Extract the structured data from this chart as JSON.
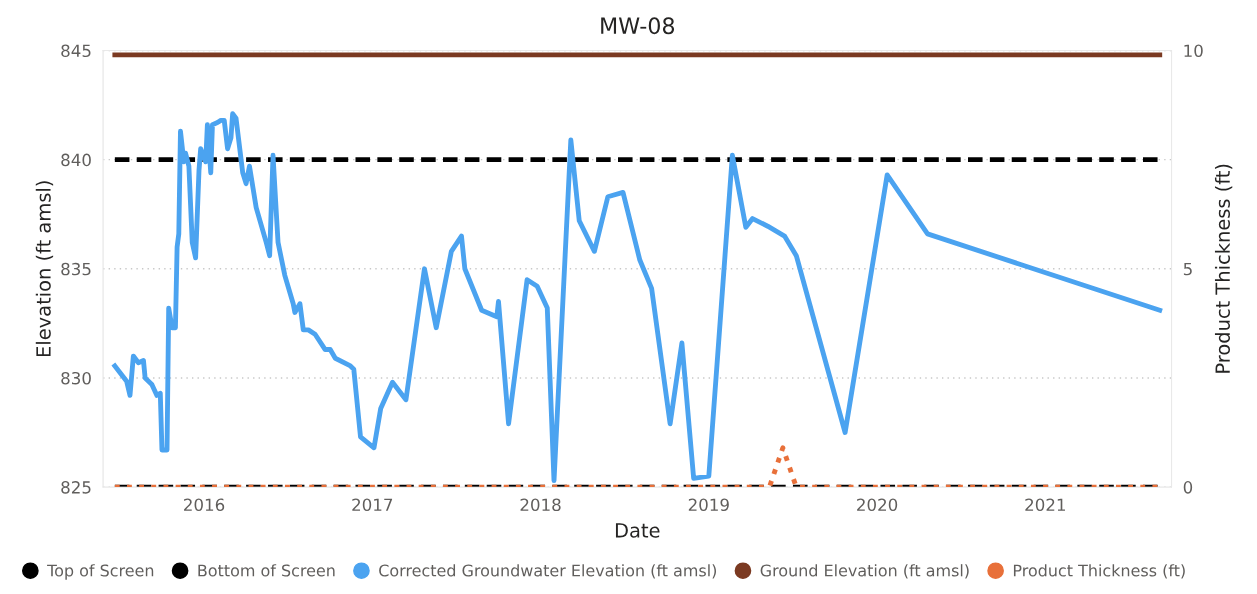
{
  "chart_data": {
    "type": "line",
    "title": "MW-08",
    "xlabel": "Date",
    "ylabel": "Elevation (ft amsl)",
    "y2label": "Product Thickness (ft)",
    "xlim": [
      2015.4,
      2021.75
    ],
    "xticks": [
      2016,
      2017,
      2018,
      2019,
      2020,
      2021
    ],
    "ylim": [
      825,
      845
    ],
    "yticks": [
      825,
      830,
      835,
      840,
      845
    ],
    "y2lim": [
      0,
      10
    ],
    "y2ticks": [
      0,
      5,
      10
    ],
    "grid": "y",
    "legend": "bottom",
    "series": [
      {
        "name": "Top of Screen",
        "color": "#000000",
        "line_style": "dashed",
        "x": [
          2015.47,
          2021.68
        ],
        "values": [
          840,
          840
        ]
      },
      {
        "name": "Bottom of Screen",
        "color": "#000000",
        "line_style": "dashed",
        "x": [
          2015.47,
          2021.68
        ],
        "values": [
          825,
          825
        ]
      },
      {
        "name": "Corrected Groundwater Elevation (ft amsl)",
        "color": "#4ba3f0",
        "line_style": "solid",
        "x": [
          2015.47,
          2015.54,
          2015.56,
          2015.58,
          2015.61,
          2015.64,
          2015.65,
          2015.69,
          2015.72,
          2015.74,
          2015.75,
          2015.78,
          2015.79,
          2015.81,
          2015.83,
          2015.84,
          2015.85,
          2015.86,
          2015.88,
          2015.89,
          2015.91,
          2015.93,
          2015.95,
          2015.97,
          2015.98,
          2016.01,
          2016.02,
          2016.04,
          2016.05,
          2016.08,
          2016.1,
          2016.12,
          2016.14,
          2016.16,
          2016.17,
          2016.19,
          2016.23,
          2016.25,
          2016.27,
          2016.31,
          2016.37,
          2016.39,
          2016.41,
          2016.43,
          2016.44,
          2016.48,
          2016.53,
          2016.54,
          2016.57,
          2016.59,
          2016.62,
          2016.66,
          2016.72,
          2016.75,
          2016.78,
          2016.87,
          2016.89,
          2016.93,
          2017.01,
          2017.05,
          2017.12,
          2017.2,
          2017.31,
          2017.38,
          2017.47,
          2017.53,
          2017.55,
          2017.65,
          2017.74,
          2017.75,
          2017.81,
          2017.92,
          2017.98,
          2018.04,
          2018.08,
          2018.18,
          2018.23,
          2018.32,
          2018.4,
          2018.49,
          2018.59,
          2018.66,
          2018.77,
          2018.84,
          2018.91,
          2019.0,
          2019.14,
          2019.22,
          2019.26,
          2019.35,
          2019.45,
          2019.52,
          2019.81,
          2020.06,
          2020.3,
          2021.68
        ],
        "values": [
          830.55,
          829.85,
          829.2,
          831.0,
          830.7,
          830.8,
          830.0,
          829.7,
          829.2,
          829.3,
          826.7,
          826.7,
          833.2,
          832.3,
          832.3,
          836.0,
          836.6,
          841.3,
          839.9,
          840.3,
          839.7,
          836.2,
          835.5,
          839.5,
          840.5,
          839.9,
          841.6,
          839.4,
          841.6,
          841.7,
          841.8,
          841.8,
          840.5,
          841.0,
          842.1,
          841.9,
          839.4,
          838.9,
          839.7,
          837.8,
          836.2,
          835.6,
          840.2,
          837.5,
          836.2,
          834.7,
          833.4,
          833.0,
          833.4,
          832.2,
          832.2,
          832.0,
          831.3,
          831.3,
          830.9,
          830.55,
          830.4,
          827.3,
          826.8,
          828.6,
          829.8,
          829.0,
          835.0,
          832.3,
          835.8,
          836.5,
          835.0,
          833.1,
          832.8,
          833.5,
          827.9,
          834.5,
          834.2,
          833.2,
          825.3,
          840.9,
          837.2,
          835.8,
          838.3,
          838.5,
          835.4,
          834.1,
          827.9,
          831.6,
          825.4,
          825.5,
          840.2,
          836.9,
          837.3,
          836.95,
          836.5,
          835.6,
          827.5,
          839.3,
          836.6,
          833.1
        ]
      },
      {
        "name": "Ground Elevation (ft amsl)",
        "color": "#7b3a22",
        "line_style": "solid",
        "x": [
          2015.47,
          2021.68
        ],
        "values": [
          844.8,
          844.8
        ]
      },
      {
        "name": "Product Thickness (ft)",
        "color": "#e8703a",
        "line_style": "dotted",
        "axis": "y2",
        "x": [
          2015.47,
          2019.36,
          2019.44,
          2019.52,
          2021.68
        ],
        "values": [
          0,
          0,
          0.9,
          0,
          0
        ]
      }
    ]
  }
}
